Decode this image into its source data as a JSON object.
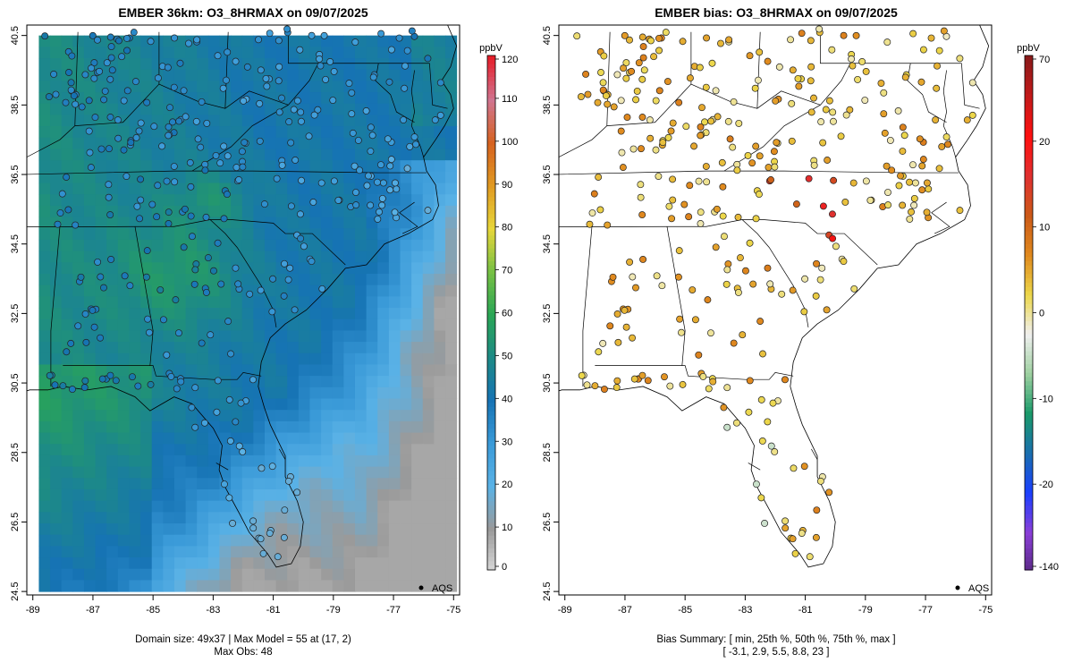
{
  "left_panel": {
    "title": "EMBER 36km: O3_8HRMAX on 09/07/2025",
    "footer_line1": "Domain size: 49x37 | Max Model = 55 at (17, 2)",
    "footer_line2": "Max Obs: 48",
    "legend_label": "AQS",
    "colorbar": {
      "unit": "ppbV",
      "ticks": [
        "0",
        "10",
        "20",
        "30",
        "40",
        "50",
        "60",
        "70",
        "80",
        "90",
        "100",
        "110",
        "120"
      ],
      "colors": [
        "#d9d9d9",
        "#9a9a9a",
        "#5ab2e6",
        "#3a9ad8",
        "#1673b4",
        "#1d8a86",
        "#2aa655",
        "#77c044",
        "#e7d63a",
        "#e09a22",
        "#d66220",
        "#d07590",
        "#e51e2a"
      ]
    }
  },
  "right_panel": {
    "title": "EMBER bias: O3_8HRMAX on 09/07/2025",
    "footer_line1": "Bias Summary: [ min, 25th %, 50th %, 75th %, max ]",
    "footer_line2": "[ -3.1,   2.9,   5.5,   8.8,   23 ]",
    "legend_label": "AQS",
    "colorbar": {
      "unit": "ppbV",
      "ticks": [
        "-140",
        "-20",
        "-10",
        "0",
        "10",
        "20",
        "70"
      ],
      "colors": [
        "#5b2a86",
        "#8a3fd8",
        "#1a3fff",
        "#1a6fae",
        "#1a9a6a",
        "#9dd0a0",
        "#f0f0f0",
        "#ecd74a",
        "#e08a1e",
        "#cc5a18",
        "#e03030",
        "#ff1010",
        "#c41a1a",
        "#8b1a1a"
      ]
    }
  },
  "map_axes": {
    "x_ticks": [
      "-89",
      "-87",
      "-85",
      "-83",
      "-81",
      "-79",
      "-77",
      "-75"
    ],
    "y_ticks": [
      "24.5",
      "26.5",
      "28.5",
      "30.5",
      "32.5",
      "34.5",
      "36.5",
      "38.5",
      "40.5"
    ],
    "xlim": [
      -89.2,
      -74.8
    ],
    "ylim": [
      24.4,
      40.8
    ]
  },
  "model_field": {
    "grid_cols": 37,
    "grid_rows": 49,
    "lon_range": [
      -88.8,
      -74.9
    ],
    "lat_range": [
      24.5,
      40.5
    ]
  }
}
